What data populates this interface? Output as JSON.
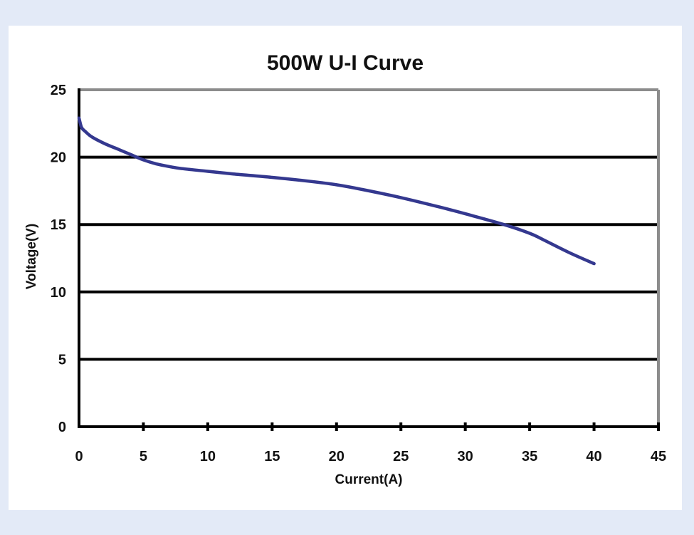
{
  "chart_data": {
    "type": "line",
    "title": "500W U-I Curve",
    "xlabel": "Current(A)",
    "ylabel": "Voltage(V)",
    "xlim": [
      0,
      45
    ],
    "ylim": [
      0,
      25
    ],
    "xticks": [
      0,
      5,
      10,
      15,
      20,
      25,
      30,
      35,
      40,
      45
    ],
    "yticks": [
      0,
      5,
      10,
      15,
      20,
      25
    ],
    "grid": "horizontal",
    "legend": "none",
    "series": [
      {
        "name": "U-I",
        "color": "#34388f",
        "x": [
          0,
          0.2,
          0.5,
          1,
          2,
          3,
          4,
          5,
          6,
          7,
          8,
          10,
          12,
          15,
          18,
          20,
          22,
          25,
          28,
          30,
          33,
          35,
          36,
          38,
          40
        ],
        "y": [
          22.9,
          22.2,
          21.9,
          21.5,
          21.0,
          20.6,
          20.2,
          19.8,
          19.5,
          19.3,
          19.15,
          18.95,
          18.75,
          18.5,
          18.2,
          17.95,
          17.6,
          17.0,
          16.3,
          15.8,
          15.0,
          14.35,
          13.9,
          12.95,
          12.1
        ]
      }
    ]
  }
}
